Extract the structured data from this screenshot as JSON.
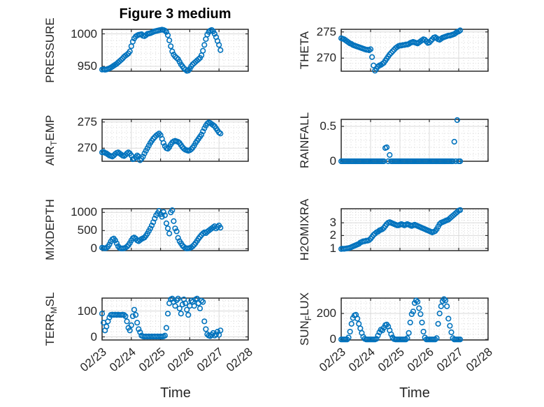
{
  "figure": {
    "title": "Figure 3 medium",
    "xlabel": "Time",
    "background": "#ffffff",
    "marker_color": "#0072BD",
    "text_color": "#262626",
    "grid_color": "#d9d9d9",
    "box_color": "#2b2b2b"
  },
  "x_axis": {
    "lim": [
      0,
      5
    ],
    "tick_labels": [
      "02/23",
      "02/24",
      "02/25",
      "02/26",
      "02/27",
      "02/28"
    ],
    "minor_divisions_per_day": 6
  },
  "chart_data": [
    {
      "type": "scatter",
      "name": "PRESSURE",
      "ylabel_parts": [
        [
          "PRESSURE",
          false
        ]
      ],
      "col": 0,
      "row": 0,
      "ylim": [
        942.5,
        1007
      ],
      "yticks": [
        950,
        1000
      ],
      "ytick_labels": [
        "950",
        "1000"
      ],
      "minor_y": 10,
      "x0": 0,
      "dx": 0.05,
      "y": [
        945,
        945.5,
        944.8,
        945.2,
        946,
        947,
        948,
        949.5,
        951,
        952.5,
        954,
        956,
        958,
        960,
        962,
        964.5,
        966.5,
        968,
        970,
        973,
        981,
        988,
        993,
        996,
        997.5,
        998.5,
        999,
        999.5,
        997,
        996.5,
        998,
        1000,
        1000.5,
        1001,
        1002,
        1003,
        1004,
        1004.5,
        1005,
        1005.5,
        1006,
        1006.5,
        1006,
        1005,
        1003,
        998,
        990,
        981,
        973,
        968,
        965,
        963,
        961,
        957,
        953,
        950,
        947,
        945,
        943,
        943.5,
        946,
        950,
        953,
        955,
        957,
        959,
        961,
        963,
        967,
        974,
        983,
        992,
        999,
        1003,
        1005,
        1006,
        1004,
        1000,
        995,
        989,
        983,
        975
      ]
    },
    {
      "type": "scatter",
      "name": "THETA",
      "ylabel_parts": [
        [
          "THETA",
          false
        ]
      ],
      "col": 1,
      "row": 0,
      "ylim": [
        267.5,
        275.5
      ],
      "yticks": [
        270,
        275
      ],
      "ytick_labels": [
        "270",
        "275"
      ],
      "minor_y": 1,
      "x0": 0,
      "dx": 0.05,
      "y": [
        273.8,
        273.7,
        273.6,
        273.4,
        273.2,
        273,
        272.8,
        272.7,
        272.5,
        272.4,
        272.3,
        272.2,
        272.1,
        272,
        271.9,
        271.8,
        271.7,
        271.6,
        271.6,
        271.5,
        271.7,
        270.2,
        268.6,
        267.6,
        268,
        268.4,
        268.6,
        268.7,
        268.9,
        269.1,
        269.5,
        269.9,
        270.3,
        270.7,
        271,
        271.3,
        271.6,
        271.9,
        272.1,
        272.3,
        272.4,
        272.4,
        272.5,
        272.5,
        272.6,
        272.6,
        272.7,
        272.9,
        273,
        273.1,
        273,
        272.9,
        272.8,
        273,
        273.2,
        273.4,
        273.6,
        273.5,
        273.2,
        272.9,
        273,
        273.3,
        273.6,
        273.9,
        274,
        273.8,
        273.6,
        273.5,
        273.7,
        273.9,
        274,
        274.1,
        274.2,
        274.3,
        274.3,
        274.4,
        274.5,
        274.6,
        274.8,
        275,
        275.1,
        275.3
      ]
    },
    {
      "type": "scatter",
      "name": "AIR_TEMP",
      "ylabel_parts": [
        [
          "AIR",
          false
        ],
        [
          "T",
          true
        ],
        [
          "EMP",
          false
        ]
      ],
      "col": 0,
      "row": 1,
      "ylim": [
        267.5,
        275.5
      ],
      "yticks": [
        270,
        275
      ],
      "ytick_labels": [
        "270",
        "275"
      ],
      "minor_y": 1,
      "x0": 0,
      "dx": 0.05,
      "y": [
        269.2,
        269.3,
        269.1,
        269,
        268.8,
        268.6,
        268.5,
        268.4,
        268.6,
        268.9,
        269.1,
        269.2,
        269,
        268.8,
        268.6,
        268.5,
        268.7,
        269,
        269.2,
        269,
        268.6,
        267.9,
        268,
        268.3,
        268.6,
        268.4,
        267.7,
        268,
        268.4,
        269,
        269.5,
        270,
        270.5,
        271,
        271.4,
        271.8,
        272.1,
        272.4,
        272.6,
        272.8,
        272.5,
        271.8,
        271,
        270.4,
        270,
        269.9,
        270.2,
        270.7,
        271.1,
        271.3,
        271.4,
        271.3,
        271.2,
        271,
        270.6,
        270.2,
        269.9,
        269.7,
        269.6,
        269.5,
        269.6,
        269.8,
        270.1,
        270.5,
        271,
        271.4,
        271.8,
        272.2,
        272.6,
        273.2,
        273.8,
        274.3,
        274.7,
        274.9,
        274.8,
        274.6,
        274.4,
        274.2,
        273.8,
        273.4,
        273,
        272.8
      ]
    },
    {
      "type": "scatter",
      "name": "RAINFALL",
      "ylabel_parts": [
        [
          "RAINFALL",
          false
        ]
      ],
      "col": 1,
      "row": 1,
      "ylim": [
        0,
        0.6
      ],
      "yticks": [
        0,
        0.5
      ],
      "ytick_labels": [
        "0",
        "0.5"
      ],
      "minor_y": 0.1,
      "x0": 0,
      "dx": 0.05,
      "y": [
        0,
        0,
        0,
        0,
        0,
        0,
        0,
        0,
        0,
        0,
        0,
        0,
        0,
        0,
        0,
        0,
        0,
        0,
        0,
        0,
        0,
        0,
        0,
        0,
        0,
        0,
        0,
        0,
        0,
        0,
        0.19,
        0.2,
        0,
        0.09,
        0,
        0,
        0,
        0,
        0,
        0,
        0,
        0,
        0,
        0,
        0,
        0,
        0,
        0,
        0,
        0,
        0,
        0,
        0,
        0,
        0,
        0,
        0,
        0,
        0,
        0,
        0,
        0,
        0,
        0,
        0,
        0,
        0,
        0,
        0,
        0,
        0,
        0,
        0,
        0,
        0,
        0,
        0,
        0.28,
        0,
        0.59,
        0,
        0
      ]
    },
    {
      "type": "scatter",
      "name": "MIXDEPTH",
      "ylabel_parts": [
        [
          "MIXDEPTH",
          false
        ]
      ],
      "col": 0,
      "row": 2,
      "ylim": [
        -50,
        1100
      ],
      "yticks": [
        0,
        500,
        1000
      ],
      "ytick_labels": [
        "0",
        "500",
        "1000"
      ],
      "minor_y": 100,
      "x0": 0,
      "dx": 0.05,
      "y": [
        30,
        20,
        15,
        25,
        60,
        120,
        200,
        260,
        280,
        230,
        150,
        70,
        20,
        10,
        10,
        15,
        30,
        60,
        100,
        160,
        230,
        290,
        310,
        280,
        230,
        210,
        240,
        270,
        290,
        310,
        360,
        420,
        490,
        560,
        640,
        730,
        830,
        920,
        980,
        1040,
        950,
        880,
        1010,
        920,
        700,
        560,
        420,
        1000,
        1060,
        760,
        560,
        480,
        300,
        210,
        150,
        90,
        50,
        20,
        10,
        15,
        20,
        40,
        70,
        110,
        160,
        220,
        280,
        330,
        380,
        420,
        450,
        430,
        470,
        500,
        530,
        560,
        590,
        620,
        560,
        600,
        640,
        580
      ]
    },
    {
      "type": "scatter",
      "name": "H2OMIXRA",
      "ylabel_parts": [
        [
          "H2OMIXRA",
          false
        ]
      ],
      "col": 1,
      "row": 2,
      "ylim": [
        0.82,
        4.1
      ],
      "yticks": [
        1,
        2,
        3
      ],
      "ytick_labels": [
        "1",
        "2",
        "3"
      ],
      "minor_y": 0.2,
      "x0": 0,
      "dx": 0.05,
      "y": [
        0.95,
        0.97,
        0.96,
        0.98,
        1,
        1.02,
        1.05,
        1.1,
        1.15,
        1.2,
        1.25,
        1.3,
        1.35,
        1.45,
        1.5,
        1.55,
        1.55,
        1.6,
        1.6,
        1.65,
        1.75,
        1.9,
        2.05,
        2.15,
        2.25,
        2.3,
        2.4,
        2.45,
        2.5,
        2.6,
        2.75,
        2.9,
        3,
        3.05,
        3,
        2.95,
        2.9,
        2.85,
        2.8,
        2.8,
        2.85,
        2.9,
        2.85,
        2.8,
        2.85,
        2.9,
        2.85,
        2.8,
        2.75,
        2.8,
        2.85,
        2.8,
        2.75,
        2.7,
        2.65,
        2.6,
        2.55,
        2.5,
        2.45,
        2.4,
        2.35,
        2.3,
        2.25,
        2.3,
        2.35,
        2.5,
        2.7,
        2.9,
        3,
        3.05,
        3.1,
        3.15,
        3.2,
        3.25,
        3.35,
        3.45,
        3.55,
        3.65,
        3.75,
        3.85,
        3.95,
        4
      ]
    },
    {
      "type": "scatter",
      "name": "TERR_MSL",
      "ylabel_parts": [
        [
          "TERR",
          false
        ],
        [
          "M",
          true
        ],
        [
          "SL",
          false
        ]
      ],
      "col": 0,
      "row": 3,
      "ylim": [
        -12,
        150
      ],
      "yticks": [
        0,
        100
      ],
      "ytick_labels": [
        "0",
        "100"
      ],
      "minor_y": 20,
      "x0": 0,
      "dx": 0.05,
      "y": [
        90,
        55,
        25,
        40,
        60,
        75,
        85,
        86,
        85,
        86,
        85,
        86,
        85,
        85,
        86,
        85,
        80,
        60,
        35,
        25,
        45,
        80,
        105,
        85,
        55,
        30,
        18,
        5,
        2,
        1,
        2,
        1,
        2,
        1,
        2,
        1,
        2,
        1,
        2,
        1,
        2,
        1,
        2,
        5,
        35,
        90,
        130,
        145,
        148,
        135,
        120,
        142,
        148,
        110,
        90,
        125,
        145,
        130,
        105,
        85,
        120,
        140,
        135,
        120,
        145,
        148,
        130,
        110,
        140,
        135,
        60,
        30,
        10,
        5,
        3,
        8,
        15,
        5,
        10,
        20,
        8,
        25
      ]
    },
    {
      "type": "scatter",
      "name": "SUN_FLUX",
      "ylabel_parts": [
        [
          "SUN",
          false
        ],
        [
          "F",
          true
        ],
        [
          "LUX",
          false
        ]
      ],
      "col": 1,
      "row": 3,
      "ylim": [
        -4,
        318
      ],
      "yticks": [
        0,
        200
      ],
      "ytick_labels": [
        "0",
        "200"
      ],
      "minor_y": 40,
      "x0": 0,
      "dx": 0.05,
      "y": [
        0,
        0,
        0,
        0,
        0,
        15,
        60,
        120,
        165,
        185,
        190,
        160,
        120,
        85,
        50,
        20,
        5,
        0,
        0,
        0,
        0,
        0,
        0,
        0,
        5,
        30,
        55,
        75,
        70,
        90,
        110,
        115,
        100,
        70,
        40,
        15,
        3,
        0,
        0,
        0,
        0,
        0,
        0,
        0,
        0,
        10,
        50,
        130,
        195,
        215,
        280,
        300,
        290,
        240,
        195,
        130,
        60,
        15,
        0,
        0,
        0,
        0,
        0,
        0,
        0,
        10,
        120,
        200,
        255,
        295,
        310,
        300,
        255,
        160,
        105,
        55,
        10,
        0,
        0,
        0,
        0,
        0
      ]
    }
  ]
}
